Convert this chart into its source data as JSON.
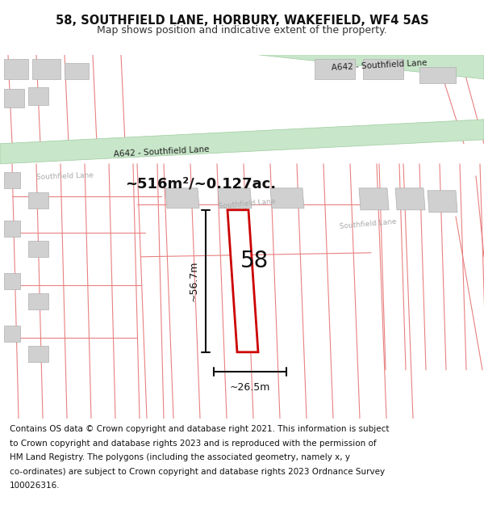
{
  "title_line1": "58, SOUTHFIELD LANE, HORBURY, WAKEFIELD, WF4 5AS",
  "title_line2": "Map shows position and indicative extent of the property.",
  "footer_lines": [
    "Contains OS data © Crown copyright and database right 2021. This information is subject",
    "to Crown copyright and database rights 2023 and is reproduced with the permission of",
    "HM Land Registry. The polygons (including the associated geometry, namely x, y",
    "co-ordinates) are subject to Crown copyright and database rights 2023 Ordnance Survey",
    "100026316."
  ],
  "area_label": "~516m²/~0.127ac.",
  "width_label": "~26.5m",
  "height_label": "~56.7m",
  "property_number": "58",
  "bg_color": "#ffffff",
  "map_bg": "#f5eeee",
  "road_green_fill": "#c8e6c9",
  "road_green_stroke": "#9ecba0",
  "road_label_color": "#222222",
  "street_label_color": "#aaaaaa",
  "pink_line_color": "#e88080",
  "red_outline_color": "#cc0000",
  "dim_line_color": "#111111",
  "grey_fill": "#d0d0d0",
  "grey_stroke": "#b0b0b0",
  "title_fontsize": 10.5,
  "subtitle_fontsize": 9,
  "footer_fontsize": 7.5,
  "area_label_fontsize": 13,
  "dim_label_fontsize": 9,
  "property_num_fontsize": 20,
  "road_label_fontsize": 7.5,
  "street_label_fontsize": 6.5
}
